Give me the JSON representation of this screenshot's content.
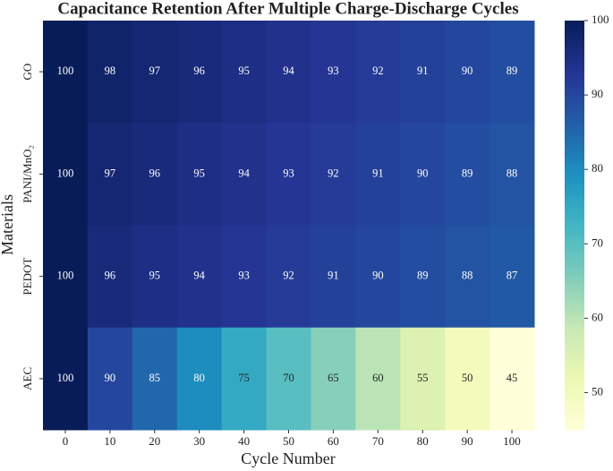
{
  "chart_data": {
    "type": "heatmap",
    "title": "Capacitance Retention After Multiple Charge-Discharge Cycles",
    "x_label": "Cycle Number",
    "y_label": "Materials",
    "x": [
      0,
      10,
      20,
      30,
      40,
      50,
      60,
      70,
      80,
      90,
      100
    ],
    "y": [
      "GO",
      "PANI/MnO₂",
      "PEDOT",
      "AEC"
    ],
    "values": [
      [
        100,
        98,
        97,
        96,
        95,
        94,
        93,
        92,
        91,
        90,
        89
      ],
      [
        100,
        97,
        96,
        95,
        94,
        93,
        92,
        91,
        90,
        89,
        88
      ],
      [
        100,
        96,
        95,
        94,
        93,
        92,
        91,
        90,
        89,
        88,
        87
      ],
      [
        100,
        90,
        85,
        80,
        75,
        70,
        65,
        60,
        55,
        50,
        45
      ]
    ],
    "colormap": "YlGnBu",
    "clim": [
      45,
      100
    ],
    "cticks": [
      50,
      60,
      70,
      80,
      90,
      100
    ]
  }
}
